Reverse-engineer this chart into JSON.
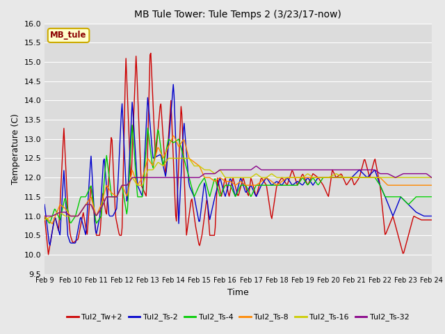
{
  "title": "MB Tule Tower: Tule Temps 2 (3/23/17-now)",
  "xlabel": "Time",
  "ylabel": "Temperature (C)",
  "ylim": [
    9.5,
    16.0
  ],
  "yticks": [
    9.5,
    10.0,
    10.5,
    11.0,
    11.5,
    12.0,
    12.5,
    13.0,
    13.5,
    14.0,
    14.5,
    15.0,
    15.5,
    16.0
  ],
  "bg_color": "#e8e8e8",
  "plot_bg_color": "#dcdcdc",
  "legend_label": "MB_tule",
  "series_labels": [
    "Tul2_Tw+2",
    "Tul2_Ts-2",
    "Tul2_Ts-4",
    "Tul2_Ts-8",
    "Tul2_Ts-16",
    "Tul2_Ts-32"
  ],
  "series_colors": [
    "#cc0000",
    "#0000cc",
    "#00cc00",
    "#ff8800",
    "#cccc00",
    "#880088"
  ],
  "x_start": 9,
  "x_end": 24,
  "xtick_labels": [
    "Feb 9",
    "Feb 10",
    "Feb 11",
    "Feb 12",
    "Feb 13",
    "Feb 14",
    "Feb 15",
    "Feb 16",
    "Feb 17",
    "Feb 18",
    "Feb 19",
    "Feb 20",
    "Feb 21",
    "Feb 22",
    "Feb 23",
    "Feb 24"
  ],
  "xtick_positions": [
    9,
    10,
    11,
    12,
    13,
    14,
    15,
    16,
    17,
    18,
    19,
    20,
    21,
    22,
    23,
    24
  ]
}
